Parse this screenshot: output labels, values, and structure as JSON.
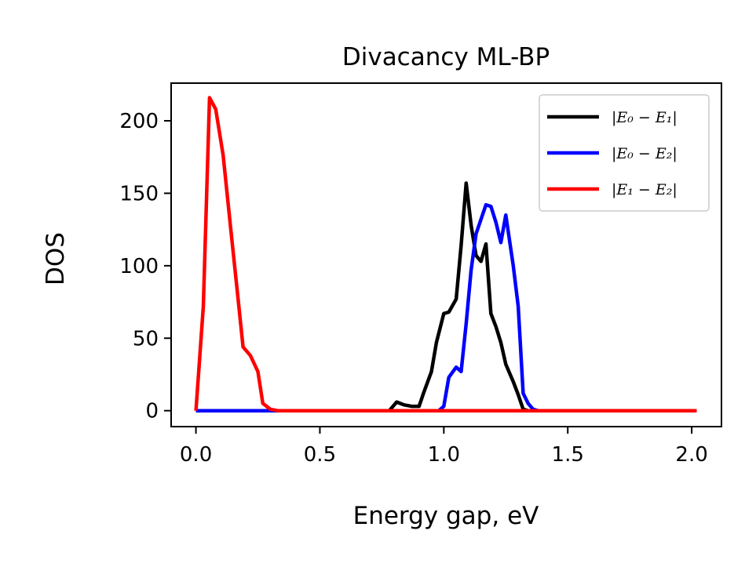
{
  "chart_data": {
    "type": "line",
    "title": "Divacancy ML-BP",
    "xlabel": "Energy gap, eV",
    "ylabel": "DOS",
    "xlim": [
      -0.1,
      2.12
    ],
    "ylim": [
      -11,
      226
    ],
    "xticks": [
      {
        "value": 0.0,
        "label": "0.0"
      },
      {
        "value": 0.5,
        "label": "0.5"
      },
      {
        "value": 1.0,
        "label": "1.0"
      },
      {
        "value": 1.5,
        "label": "1.5"
      },
      {
        "value": 2.0,
        "label": "2.0"
      }
    ],
    "yticks": [
      {
        "value": 0,
        "label": "0"
      },
      {
        "value": 50,
        "label": "50"
      },
      {
        "value": 100,
        "label": "100"
      },
      {
        "value": 150,
        "label": "150"
      },
      {
        "value": 200,
        "label": "200"
      }
    ],
    "grid": false,
    "legend_position": "top-right",
    "series": [
      {
        "name": "|E₀ − E₁|",
        "color": "#000000",
        "x": [
          0.0,
          0.78,
          0.81,
          0.84,
          0.87,
          0.9,
          0.92,
          0.95,
          0.97,
          1.0,
          1.02,
          1.05,
          1.07,
          1.09,
          1.11,
          1.13,
          1.15,
          1.17,
          1.19,
          1.21,
          1.23,
          1.25,
          1.28,
          1.3,
          1.32,
          1.34,
          1.36,
          1.4,
          2.02
        ],
        "y": [
          0,
          0,
          6,
          4,
          3,
          3,
          13,
          27,
          47,
          67,
          68,
          77,
          114,
          157,
          128,
          107,
          103,
          115,
          67,
          58,
          47,
          32,
          20,
          11,
          1,
          0,
          0,
          0,
          0
        ]
      },
      {
        "name": "|E₀ − E₂|",
        "color": "#0000ff",
        "x": [
          0.0,
          0.98,
          1.0,
          1.02,
          1.05,
          1.07,
          1.09,
          1.11,
          1.13,
          1.15,
          1.17,
          1.19,
          1.21,
          1.23,
          1.25,
          1.28,
          1.3,
          1.32,
          1.34,
          1.36,
          1.38,
          1.42,
          2.02
        ],
        "y": [
          0,
          0,
          3,
          23,
          30,
          27,
          60,
          97,
          122,
          132,
          142,
          141,
          130,
          116,
          135,
          100,
          72,
          12,
          5,
          1,
          0,
          0,
          0
        ]
      },
      {
        "name": "|E₁ − E₂|",
        "color": "#ff0000",
        "x": [
          0.0,
          0.03,
          0.055,
          0.08,
          0.11,
          0.14,
          0.17,
          0.19,
          0.22,
          0.25,
          0.27,
          0.3,
          0.33,
          0.36,
          0.4,
          2.02
        ],
        "y": [
          0,
          72,
          216,
          208,
          176,
          126,
          77,
          44,
          38,
          27,
          5,
          1,
          0,
          0,
          0,
          0
        ]
      }
    ]
  }
}
